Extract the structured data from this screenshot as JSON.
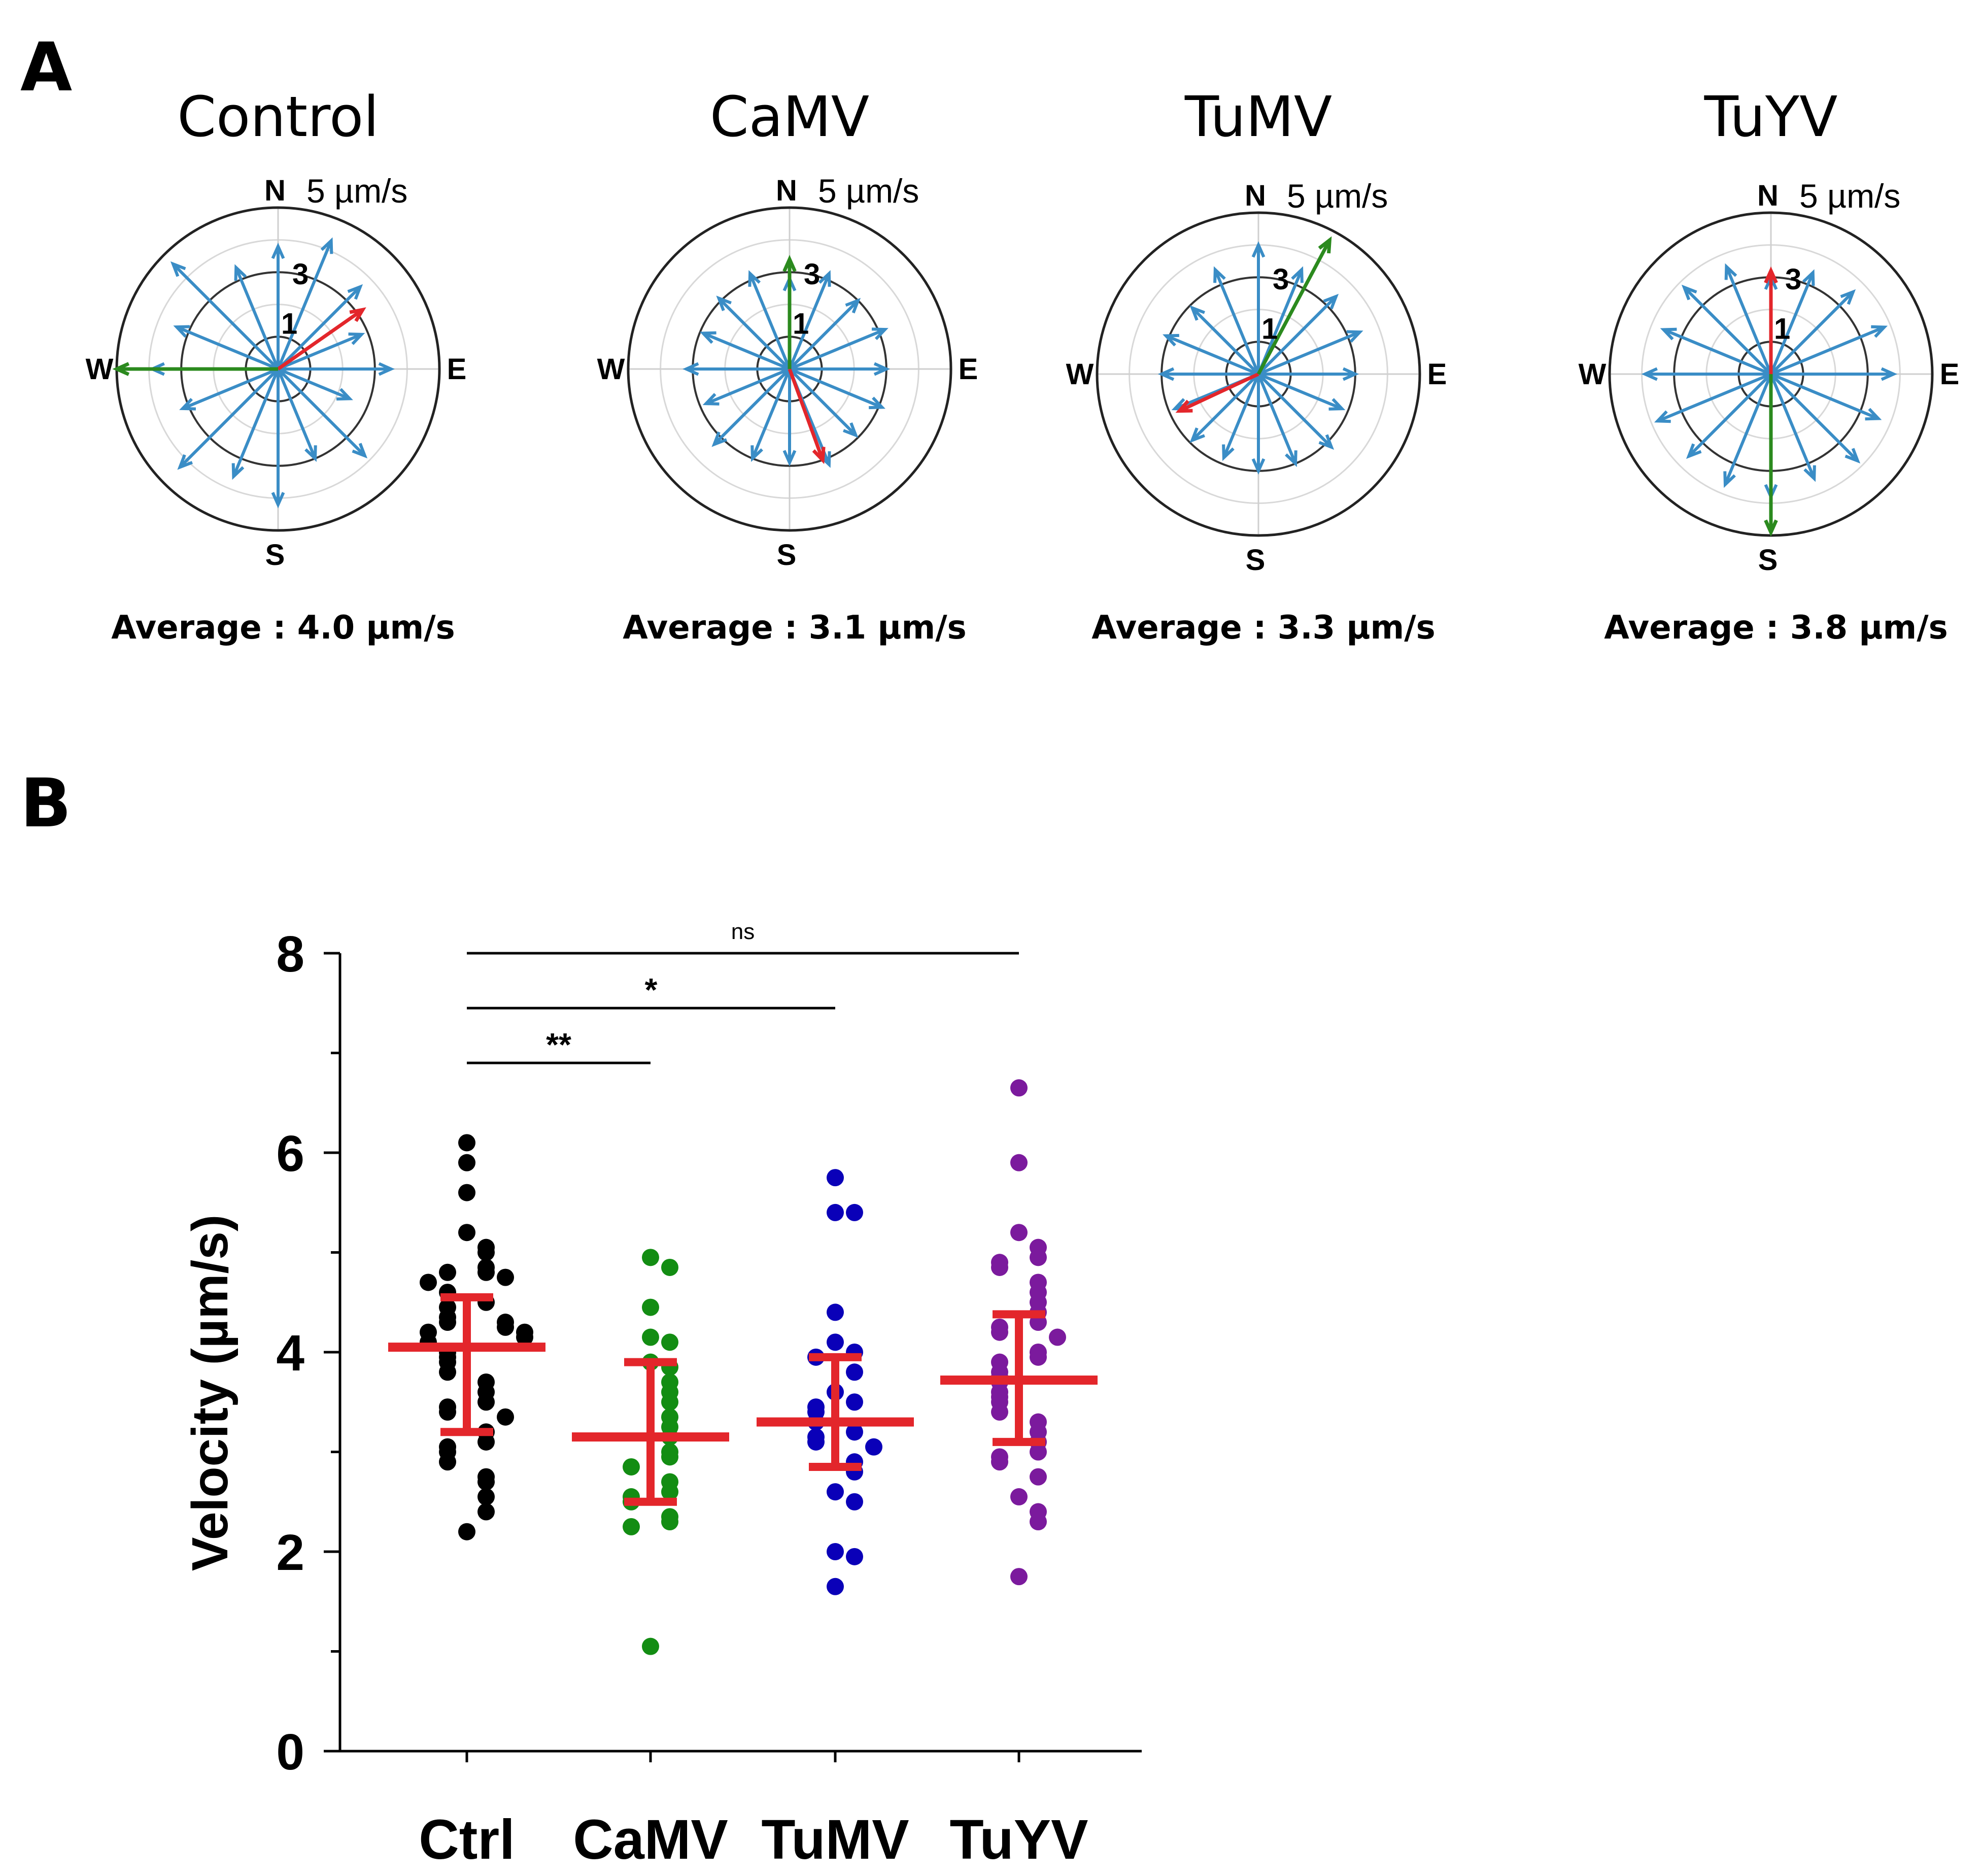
{
  "panel_a": {
    "label": "A",
    "roses": [
      {
        "title": "Control",
        "scale": "5 µm/s",
        "average": "Average : 4.0 µm/s",
        "ring_labels": [
          "1",
          "3"
        ],
        "compass": [
          "N",
          "E",
          "S",
          "W"
        ],
        "blue_magnitudes": [
          3.8,
          4.3,
          3.6,
          2.8,
          3.5,
          2.4,
          3.8,
          3.0,
          4.2,
          3.6,
          4.3,
          3.2,
          3.9,
          3.4,
          4.6,
          3.4
        ],
        "red": {
          "angle_deg": 55,
          "magnitude": 3.2
        },
        "green": {
          "angle_deg": 270,
          "magnitude": 5.0
        }
      },
      {
        "title": "CaMV",
        "scale": "5 µm/s",
        "average": "Average : 3.1 µm/s",
        "ring_labels": [
          "1",
          "3"
        ],
        "compass": [
          "N",
          "E",
          "S",
          "W"
        ],
        "blue_magnitudes": [
          2.8,
          3.2,
          3.0,
          3.2,
          3.0,
          3.1,
          2.9,
          3.2,
          2.9,
          3.0,
          3.3,
          2.8,
          3.2,
          2.9,
          3.1,
          3.2
        ],
        "red": {
          "angle_deg": 160,
          "magnitude": 3.0
        },
        "green": {
          "angle_deg": 0,
          "magnitude": 3.4
        }
      },
      {
        "title": "TuMV",
        "scale": "5 µm/s",
        "average": "Average : 3.3 µm/s",
        "ring_labels": [
          "1",
          "3"
        ],
        "compass": [
          "N",
          "E",
          "S",
          "W"
        ],
        "blue_magnitudes": [
          4.0,
          3.5,
          3.4,
          3.4,
          3.0,
          2.8,
          3.2,
          3.0,
          3.0,
          2.8,
          2.9,
          2.8,
          3.0,
          3.1,
          2.9,
          3.5
        ],
        "red": {
          "angle_deg": 245,
          "magnitude": 2.7
        },
        "green": {
          "angle_deg": 28,
          "magnitude": 4.7
        }
      },
      {
        "title": "TuYV",
        "scale": "5 µm/s",
        "average": "Average : 3.8 µm/s",
        "ring_labels": [
          "1",
          "3"
        ],
        "compass": [
          "N",
          "E",
          "S",
          "W"
        ],
        "blue_magnitudes": [
          3.0,
          3.4,
          3.6,
          3.8,
          3.8,
          3.6,
          3.8,
          3.5,
          3.8,
          3.7,
          3.6,
          3.8,
          3.9,
          3.6,
          3.8,
          3.6
        ],
        "red": {
          "angle_deg": 0,
          "magnitude": 3.2
        },
        "green": {
          "angle_deg": 180,
          "magnitude": 4.9
        }
      }
    ]
  },
  "panel_b": {
    "label": "B"
  },
  "chart_data": {
    "type": "scatter",
    "title": "",
    "xlabel": "",
    "ylabel": "Velocity (µm/s)",
    "ylim": [
      0,
      8
    ],
    "yticks": [
      "0",
      "2",
      "4",
      "6",
      "8"
    ],
    "categories": [
      "Ctrl",
      "CaMV",
      "TuMV",
      "TuYV"
    ],
    "series": [
      {
        "name": "Ctrl",
        "color": "#000000",
        "mean": 4.05,
        "sd_low": 3.2,
        "sd_high": 4.55,
        "values": [
          6.1,
          5.9,
          5.6,
          5.2,
          5.05,
          5.0,
          4.85,
          4.8,
          4.8,
          4.75,
          4.7,
          4.6,
          4.5,
          4.45,
          4.35,
          4.3,
          4.3,
          4.25,
          4.2,
          4.2,
          4.15,
          4.1,
          4.0,
          3.95,
          3.9,
          3.8,
          3.7,
          3.6,
          3.5,
          3.45,
          3.4,
          3.35,
          3.2,
          3.1,
          3.05,
          3.0,
          2.9,
          2.75,
          2.7,
          2.55,
          2.4,
          2.2
        ]
      },
      {
        "name": "CaMV",
        "color": "#138d13",
        "mean": 3.15,
        "sd_low": 2.5,
        "sd_high": 3.9,
        "values": [
          4.95,
          4.85,
          4.45,
          4.15,
          4.1,
          3.9,
          3.85,
          3.7,
          3.6,
          3.5,
          3.35,
          3.25,
          3.15,
          3.0,
          2.95,
          2.85,
          2.7,
          2.6,
          2.55,
          2.5,
          2.35,
          2.3,
          2.25,
          1.05
        ]
      },
      {
        "name": "TuMV",
        "color": "#0a00b8",
        "mean": 3.3,
        "sd_low": 2.85,
        "sd_high": 3.95,
        "values": [
          5.75,
          5.4,
          5.4,
          4.4,
          4.1,
          4.0,
          3.95,
          3.8,
          3.6,
          3.5,
          3.45,
          3.4,
          3.3,
          3.2,
          3.15,
          3.1,
          3.05,
          2.9,
          2.8,
          2.6,
          2.5,
          2.0,
          1.95,
          1.65
        ]
      },
      {
        "name": "TuYV",
        "color": "#7b1a9d",
        "mean": 3.72,
        "sd_low": 3.1,
        "sd_high": 4.38,
        "values": [
          6.65,
          5.9,
          5.2,
          5.05,
          4.95,
          4.9,
          4.85,
          4.7,
          4.6,
          4.5,
          4.4,
          4.3,
          4.25,
          4.2,
          4.15,
          4.0,
          3.95,
          3.9,
          3.8,
          3.75,
          3.7,
          3.6,
          3.55,
          3.5,
          3.4,
          3.3,
          3.2,
          3.1,
          3.0,
          2.95,
          2.9,
          2.75,
          2.55,
          2.4,
          2.3,
          1.75
        ]
      }
    ],
    "significance": [
      {
        "from": "Ctrl",
        "to": "TuYV",
        "label": "ns",
        "y": 8.0
      },
      {
        "from": "Ctrl",
        "to": "TuMV",
        "label": "*",
        "y": 7.45
      },
      {
        "from": "Ctrl",
        "to": "CaMV",
        "label": "**",
        "y": 6.9
      }
    ]
  }
}
